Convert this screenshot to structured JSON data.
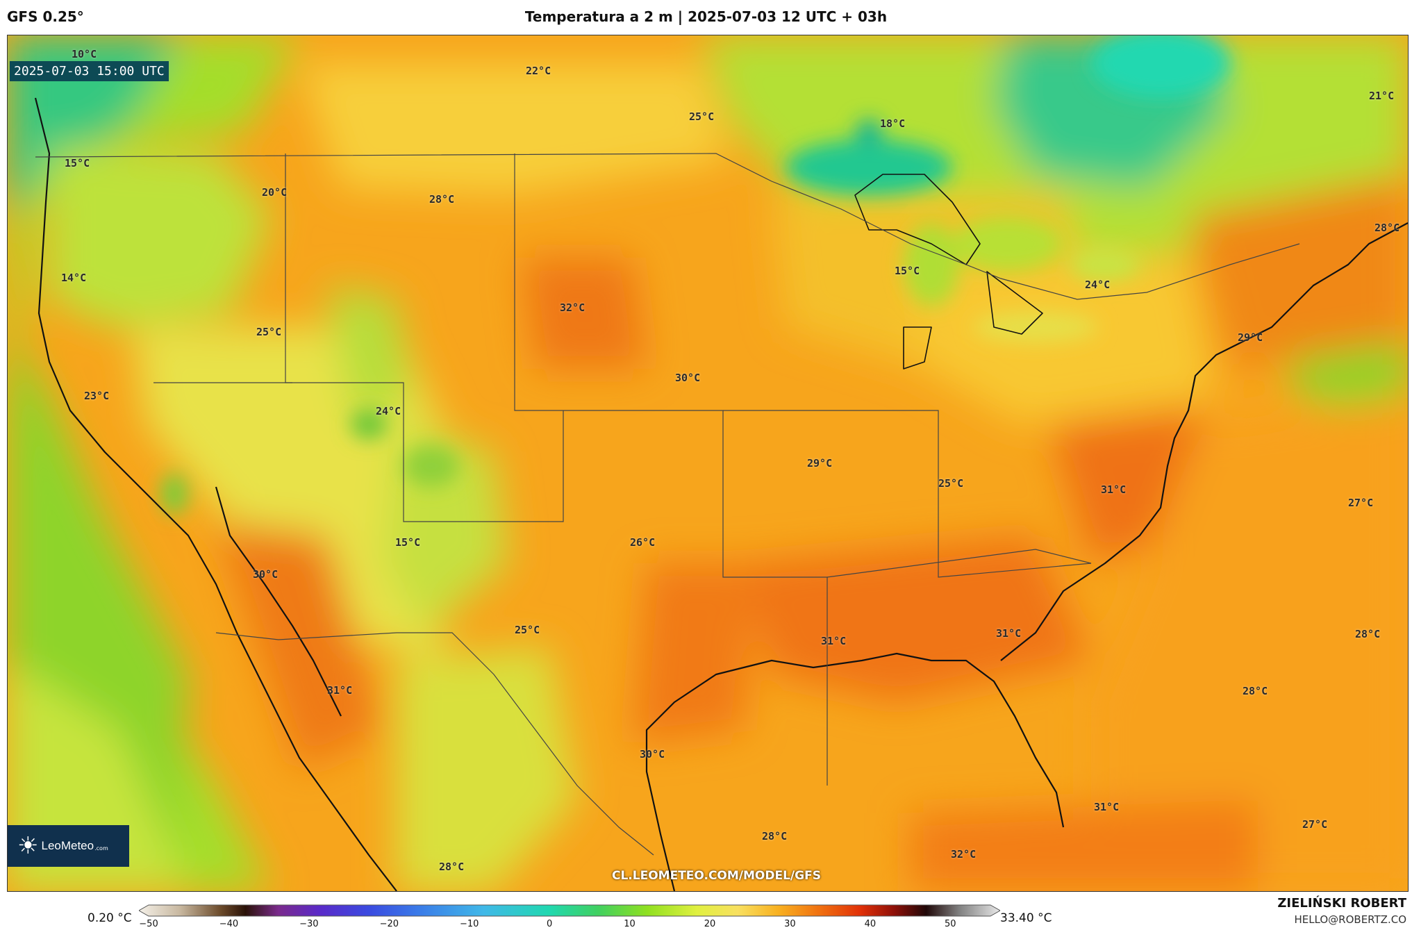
{
  "header": {
    "model": "GFS 0.25°",
    "title": "Temperatura a 2 m | 2025-07-03 12 UTC + 03h"
  },
  "map": {
    "valid_time": "2025-07-03 15:00 UTC",
    "temperature_labels": [
      "10°C",
      "22°C",
      "25°C",
      "18°C",
      "21°C",
      "15°C",
      "20°C",
      "28°C",
      "28°C",
      "14°C",
      "15°C",
      "24°C",
      "32°C",
      "25°C",
      "29°C",
      "30°C",
      "23°C",
      "24°C",
      "29°C",
      "25°C",
      "31°C",
      "27°C",
      "26°C",
      "15°C",
      "30°C",
      "25°C",
      "31°C",
      "31°C",
      "28°C",
      "31°C",
      "28°C",
      "30°C",
      "31°C",
      "28°C",
      "27°C",
      "32°C",
      "28°C"
    ],
    "source_url": "CL.LEOMETEO.COM/MODEL/GFS",
    "logo_text": "LeoMeteo",
    "logo_domain": ".com"
  },
  "colorbar": {
    "min_value": "0.20 °C",
    "max_value": "33.40 °C",
    "tick_labels": [
      "−50",
      "−40",
      "−30",
      "−20",
      "−10",
      "0",
      "10",
      "20",
      "30",
      "40",
      "50"
    ],
    "range": [
      -50,
      55
    ],
    "stops": [
      [
        -50,
        "#f4f0e8"
      ],
      [
        -45,
        "#c8b8a0"
      ],
      [
        -40,
        "#6b4a2a"
      ],
      [
        -37,
        "#2a1208"
      ],
      [
        -33,
        "#7a2a8c"
      ],
      [
        -28,
        "#5a2ac8"
      ],
      [
        -22,
        "#3a4ae0"
      ],
      [
        -16,
        "#3a7ae8"
      ],
      [
        -8,
        "#40b8e8"
      ],
      [
        0,
        "#20d8b0"
      ],
      [
        6,
        "#40d060"
      ],
      [
        12,
        "#90e020"
      ],
      [
        18,
        "#e0f040"
      ],
      [
        23,
        "#f8e060"
      ],
      [
        28,
        "#f8b020"
      ],
      [
        33,
        "#f07010"
      ],
      [
        38,
        "#e03008"
      ],
      [
        42,
        "#901008"
      ],
      [
        46,
        "#200808"
      ],
      [
        50,
        "#808080"
      ],
      [
        55,
        "#e8e8e8"
      ]
    ]
  },
  "author": {
    "name": "ZIELIŃSKI ROBERT",
    "email": "HELLO@ROBERTZ.CO"
  }
}
